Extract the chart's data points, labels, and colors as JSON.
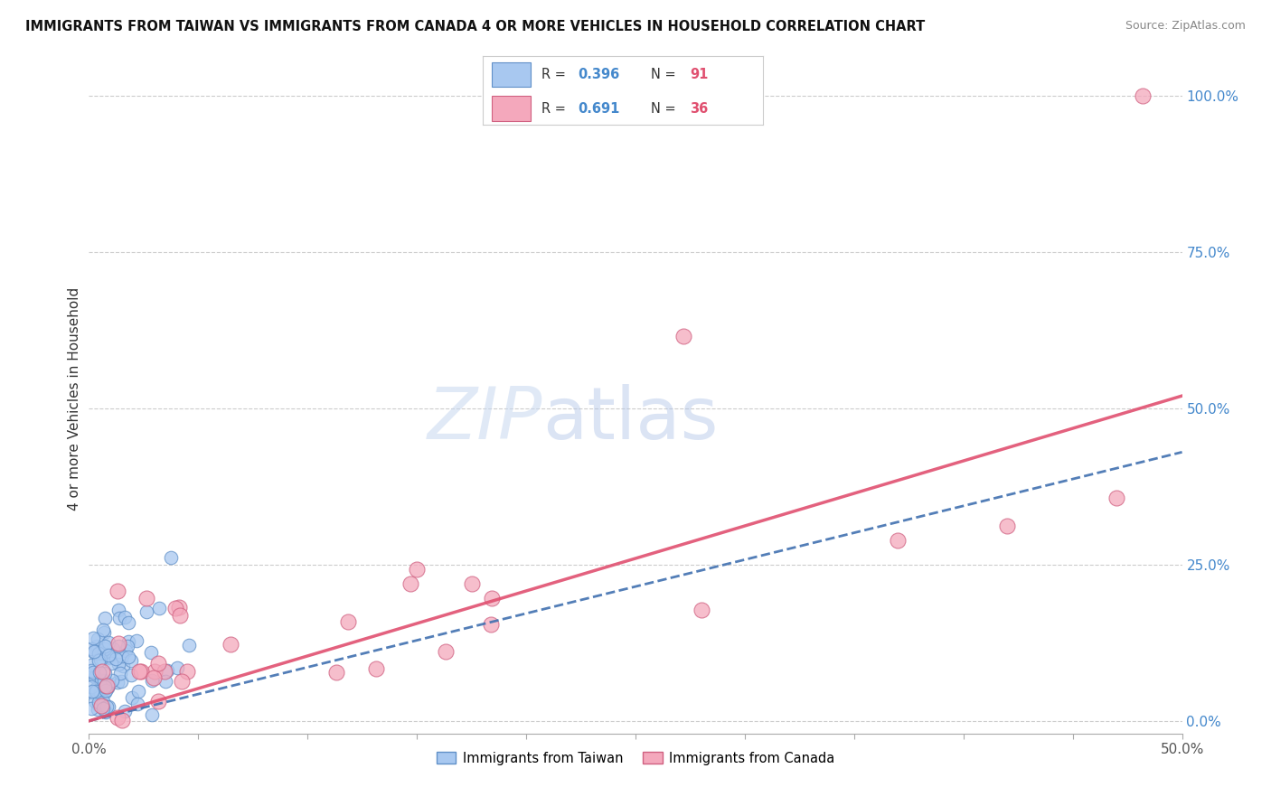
{
  "title": "IMMIGRANTS FROM TAIWAN VS IMMIGRANTS FROM CANADA 4 OR MORE VEHICLES IN HOUSEHOLD CORRELATION CHART",
  "source": "Source: ZipAtlas.com",
  "ylabel": "4 or more Vehicles in Household",
  "xlim": [
    0.0,
    0.5
  ],
  "ylim": [
    -0.02,
    1.05
  ],
  "taiwan_color": "#A8C8F0",
  "canada_color": "#F4A8BC",
  "taiwan_edge": "#6090C8",
  "canada_edge": "#D06080",
  "taiwan_line_color": "#4070B0",
  "canada_line_color": "#E05070",
  "taiwan_R": 0.396,
  "taiwan_N": 91,
  "canada_R": 0.691,
  "canada_N": 36,
  "taiwan_label": "Immigrants from Taiwan",
  "canada_label": "Immigrants from Canada",
  "watermark_zip": "ZIP",
  "watermark_atlas": "atlas",
  "background_color": "#ffffff",
  "grid_color": "#cccccc",
  "right_tick_color": "#4488CC",
  "ytick_positions": [
    0.0,
    0.25,
    0.5,
    0.75,
    1.0
  ],
  "ytick_labels": [
    "0.0%",
    "25.0%",
    "50.0%",
    "75.0%",
    "100.0%"
  ],
  "xtick_positions": [
    0.0,
    0.05,
    0.1,
    0.15,
    0.2,
    0.25,
    0.3,
    0.35,
    0.4,
    0.45,
    0.5
  ],
  "xtick_label_left": "0.0%",
  "xtick_label_right": "50.0%"
}
